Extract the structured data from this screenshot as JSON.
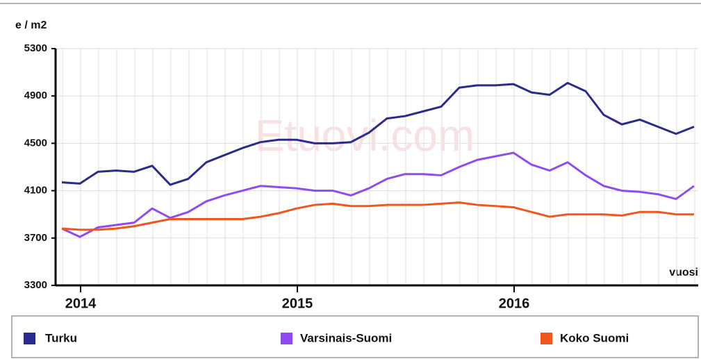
{
  "chart_data": {
    "type": "line",
    "y_axis_label": "e / m2",
    "x_axis_label": "vuosi",
    "watermark": "Etuovi.com",
    "categories": [
      null,
      "2014",
      null,
      null,
      null,
      null,
      null,
      null,
      null,
      null,
      null,
      null,
      null,
      "2015",
      null,
      null,
      null,
      null,
      null,
      null,
      null,
      null,
      null,
      null,
      null,
      "2016",
      null,
      null,
      null,
      null,
      null,
      null,
      null,
      null,
      null,
      null
    ],
    "series": [
      {
        "name": "Turku",
        "color": "#2b2b8c",
        "values": [
          4170,
          4160,
          4260,
          4270,
          4260,
          4310,
          4150,
          4200,
          4340,
          4400,
          4460,
          4510,
          4530,
          4530,
          4500,
          4500,
          4510,
          4590,
          4710,
          4730,
          4770,
          4810,
          4970,
          4990,
          4990,
          5000,
          4930,
          4910,
          5010,
          4940,
          4740,
          4660,
          4700,
          4640,
          4580,
          4640
        ]
      },
      {
        "name": "Varsinais-Suomi",
        "color": "#8e4cf0",
        "values": [
          3780,
          3710,
          3790,
          3810,
          3830,
          3950,
          3870,
          3920,
          4010,
          4060,
          4100,
          4140,
          4130,
          4120,
          4100,
          4100,
          4060,
          4120,
          4200,
          4240,
          4240,
          4230,
          4300,
          4360,
          4390,
          4420,
          4320,
          4270,
          4340,
          4230,
          4140,
          4100,
          4090,
          4070,
          4030,
          4140
        ]
      },
      {
        "name": "Koko Suomi",
        "color": "#f0561e",
        "values": [
          3780,
          3770,
          3770,
          3780,
          3800,
          3830,
          3860,
          3860,
          3860,
          3860,
          3860,
          3880,
          3910,
          3950,
          3980,
          3990,
          3970,
          3970,
          3980,
          3980,
          3980,
          3990,
          4000,
          3980,
          3970,
          3960,
          3920,
          3880,
          3900,
          3900,
          3900,
          3890,
          3920,
          3920,
          3900,
          3900
        ]
      }
    ],
    "ylim": [
      3300,
      5300
    ],
    "yticks": [
      3300,
      3700,
      4100,
      4500,
      4900,
      5300
    ],
    "grid": true
  }
}
